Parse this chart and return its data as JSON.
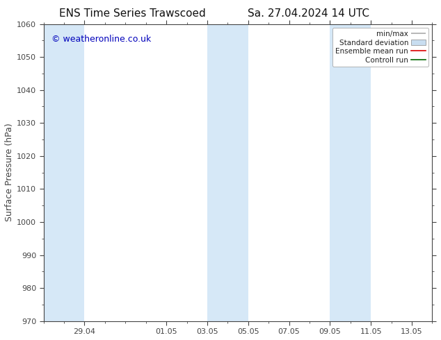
{
  "title_left": "ENS Time Series Trawscoed",
  "title_right": "Sa. 27.04.2024 14 UTC",
  "ylabel": "Surface Pressure (hPa)",
  "watermark": "© weatheronline.co.uk",
  "ylim": [
    970,
    1060
  ],
  "yticks": [
    970,
    980,
    990,
    1000,
    1010,
    1020,
    1030,
    1040,
    1050,
    1060
  ],
  "xtick_labels": [
    "29.04",
    "01.05",
    "03.05",
    "05.05",
    "07.05",
    "09.05",
    "11.05",
    "13.05"
  ],
  "xtick_positions": [
    2.0,
    6.0,
    8.0,
    10.0,
    12.0,
    14.0,
    16.0,
    18.0
  ],
  "x_min": 0.0,
  "x_max": 19.0,
  "shaded_bands": [
    {
      "x_start": 0.0,
      "x_end": 2.0
    },
    {
      "x_start": 8.0,
      "x_end": 10.0
    },
    {
      "x_start": 14.0,
      "x_end": 16.0
    }
  ],
  "band_color": "#d6e8f7",
  "background_color": "#ffffff",
  "legend_items": [
    {
      "label": "min/max"
    },
    {
      "label": "Standard deviation"
    },
    {
      "label": "Ensemble mean run"
    },
    {
      "label": "Controll run"
    }
  ],
  "legend_handle_colors": [
    "#aaaaaa",
    "#c8ddf0",
    "#dd0000",
    "#006600"
  ],
  "title_fontsize": 11,
  "watermark_color": "#0000bb",
  "watermark_fontsize": 9,
  "axis_color": "#444444",
  "tick_color": "#444444",
  "tick_labelsize": 8,
  "ylabel_fontsize": 9
}
